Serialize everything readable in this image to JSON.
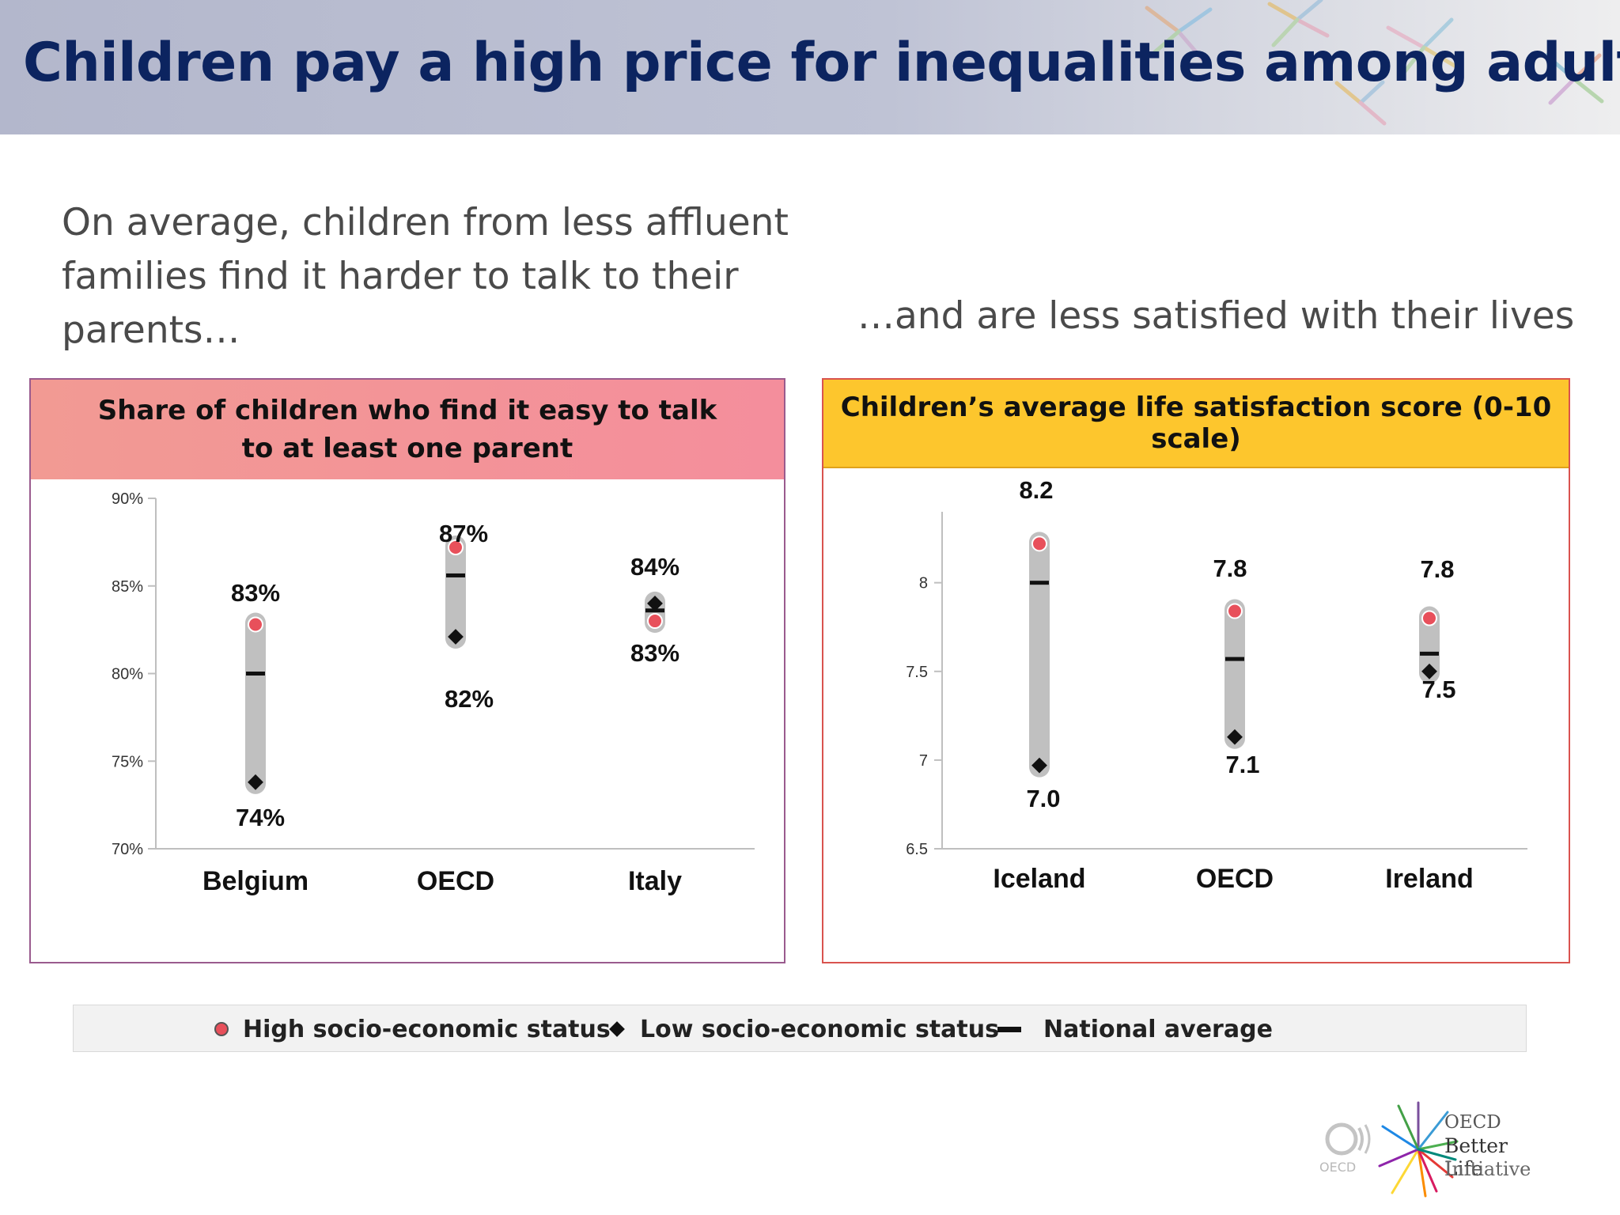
{
  "slide": {
    "title": "Children pay a high price for inequalities among adults",
    "intro_left": "On average, children from less affluent families find it harder to talk to their parents…",
    "intro_right": "…and are less satisfied with their lives"
  },
  "colors": {
    "high": "#e8505b",
    "low": "#111111",
    "average": "#111111",
    "range_bar": "#c0c0c0",
    "title": "#0c2460"
  },
  "chart_data": [
    {
      "type": "range",
      "title": "Share of children who find it easy to talk to at least one parent",
      "title_lines": [
        "Share of children who find it easy to talk",
        "to at least one parent"
      ],
      "categories": [
        "Belgium",
        "OECD",
        "Italy"
      ],
      "yticks": [
        "70%",
        "75%",
        "80%",
        "85%",
        "90%"
      ],
      "ylim": [
        70,
        90
      ],
      "series": [
        {
          "name": "High socio-economic status",
          "values": [
            82.8,
            87.2,
            83.0
          ]
        },
        {
          "name": "Low socio-economic status",
          "values": [
            73.8,
            82.1,
            84.0
          ]
        },
        {
          "name": "National average",
          "values": [
            80.0,
            85.6,
            83.6
          ]
        }
      ],
      "data_labels": [
        {
          "top": "83%",
          "bottom": "74%"
        },
        {
          "top": "87%",
          "bottom": "82%"
        },
        {
          "top": "84%",
          "bottom": "83%"
        }
      ]
    },
    {
      "type": "range",
      "title": "Children’s average life satisfaction score  (0-10 scale)",
      "categories": [
        "Iceland",
        "OECD",
        "Ireland"
      ],
      "yticks": [
        "6.5",
        "7",
        "7.5",
        "8"
      ],
      "ylim": [
        6.5,
        8.4
      ],
      "series": [
        {
          "name": "High socio-economic status",
          "values": [
            8.22,
            7.84,
            7.8
          ]
        },
        {
          "name": "Low socio-economic status",
          "values": [
            6.97,
            7.13,
            7.5
          ]
        },
        {
          "name": "National average",
          "values": [
            8.0,
            7.57,
            7.6
          ]
        }
      ],
      "data_labels": [
        {
          "top": "8.2",
          "bottom": "7.0"
        },
        {
          "top": "7.8",
          "bottom": "7.1"
        },
        {
          "top": "7.8",
          "bottom": "7.5"
        }
      ]
    }
  ],
  "legend": {
    "items": [
      {
        "label": "High socio-economic status",
        "marker": "circle"
      },
      {
        "label": "Low socio-economic status",
        "marker": "diamond"
      },
      {
        "label": "National average",
        "marker": "dash"
      }
    ]
  },
  "logo": {
    "oecd": "OECD",
    "line1": "OECD",
    "line2": "Better Life",
    "line3": "Initiative"
  }
}
